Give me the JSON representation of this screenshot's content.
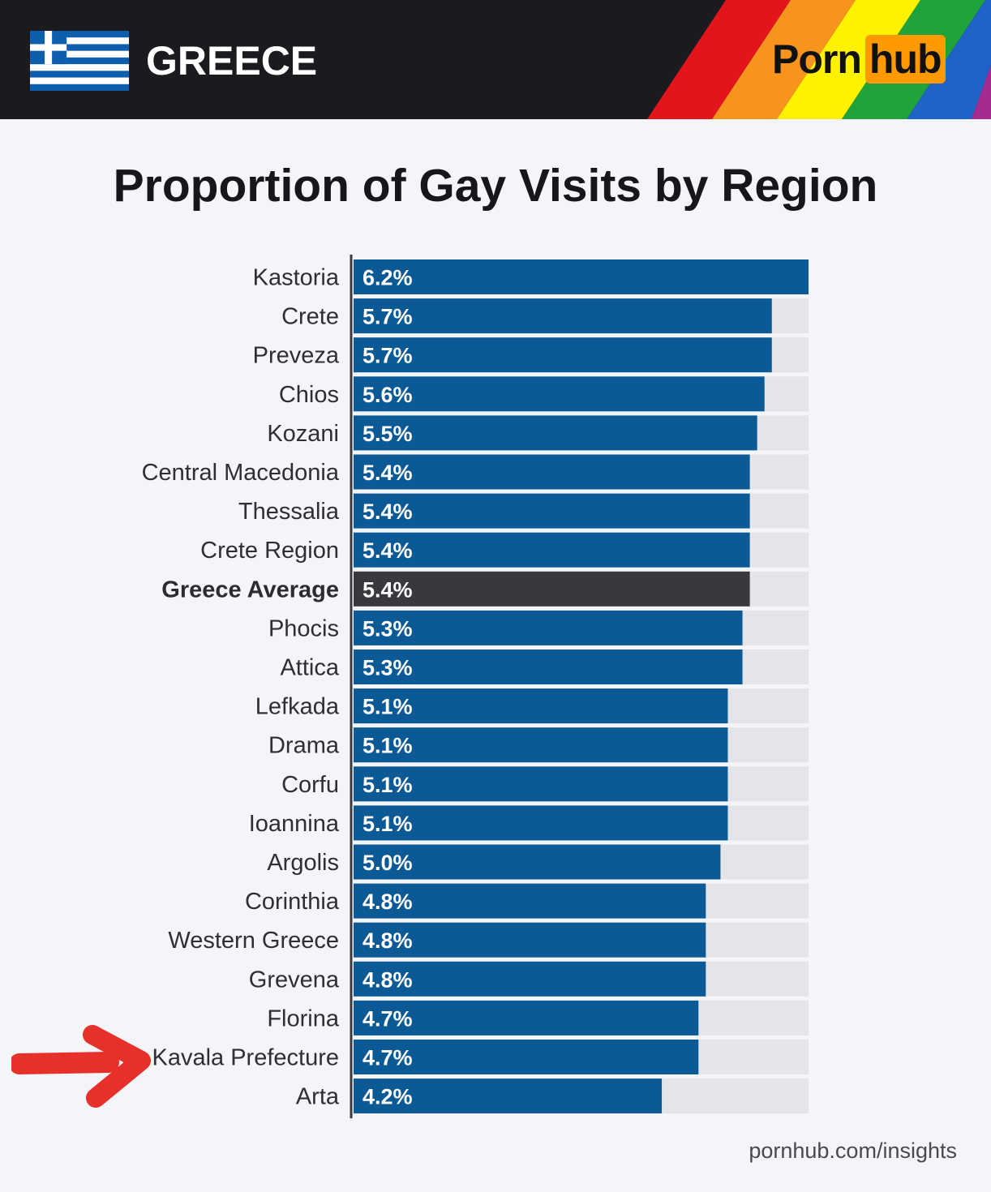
{
  "header": {
    "country": "GREECE",
    "logo_part1": "Porn",
    "logo_part2": "hub"
  },
  "footer": {
    "source": "pornhub.com/insights"
  },
  "colors": {
    "bar": "#0b5a96",
    "highlight_bar": "#38383f",
    "track": "#e3e5e8",
    "logo_accent": "#ff9900",
    "arrow": "#e8302a"
  },
  "chart_data": {
    "type": "bar",
    "orientation": "horizontal",
    "title": "Proportion of Gay Visits by Region",
    "xlabel": "",
    "ylabel": "",
    "xlim": [
      0,
      6.2
    ],
    "grid": false,
    "categories": [
      "Kastoria",
      "Crete",
      "Preveza",
      "Chios",
      "Kozani",
      "Central Macedonia",
      "Thessalia",
      "Crete Region",
      "Greece Average",
      "Phocis",
      "Attica",
      "Lefkada",
      "Drama",
      "Corfu",
      "Ioannina",
      "Argolis",
      "Corinthia",
      "Western Greece",
      "Grevena",
      "Florina",
      "Kavala Prefecture",
      "Arta"
    ],
    "values": [
      6.2,
      5.7,
      5.7,
      5.6,
      5.5,
      5.4,
      5.4,
      5.4,
      5.4,
      5.3,
      5.3,
      5.1,
      5.1,
      5.1,
      5.1,
      5.0,
      4.8,
      4.8,
      4.8,
      4.7,
      4.7,
      4.2
    ],
    "value_labels": [
      "6.2%",
      "5.7%",
      "5.7%",
      "5.6%",
      "5.5%",
      "5.4%",
      "5.4%",
      "5.4%",
      "5.4%",
      "5.3%",
      "5.3%",
      "5.1%",
      "5.1%",
      "5.1%",
      "5.1%",
      "5.0%",
      "4.8%",
      "4.8%",
      "4.8%",
      "4.7%",
      "4.7%",
      "4.2%"
    ],
    "highlight": "Greece Average",
    "annotation": "Kavala Prefecture"
  }
}
